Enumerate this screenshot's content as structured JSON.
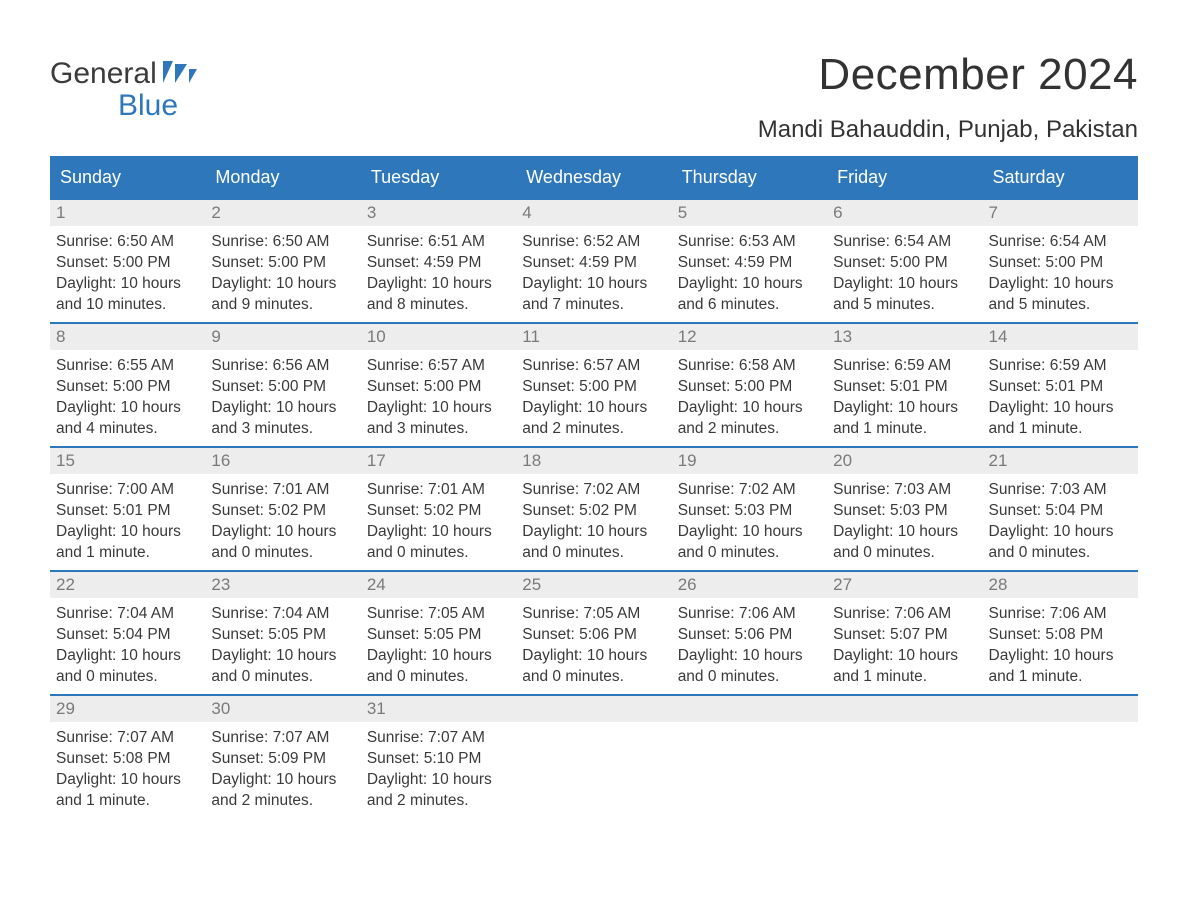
{
  "brand": {
    "word1": "General",
    "word2": "Blue",
    "accent_color": "#2f77bb"
  },
  "header": {
    "month_title": "December 2024",
    "location": "Mandi Bahauddin, Punjab, Pakistan"
  },
  "calendar": {
    "day_headers": [
      "Sunday",
      "Monday",
      "Tuesday",
      "Wednesday",
      "Thursday",
      "Friday",
      "Saturday"
    ],
    "colors": {
      "header_bg": "#2f77bb",
      "header_text": "#ffffff",
      "daynum_bg": "#ededed",
      "daynum_text": "#7a7a7a",
      "body_text": "#3a3a3a",
      "rule": "#2f77bb",
      "page_bg": "#ffffff"
    },
    "typography": {
      "month_title_fontsize": 44,
      "location_fontsize": 24,
      "header_fontsize": 18,
      "daynum_fontsize": 17,
      "body_fontsize": 15.5,
      "logo_fontsize": 30
    },
    "weeks": [
      [
        {
          "num": "1",
          "sunrise": "Sunrise: 6:50 AM",
          "sunset": "Sunset: 5:00 PM",
          "daylight1": "Daylight: 10 hours",
          "daylight2": "and 10 minutes."
        },
        {
          "num": "2",
          "sunrise": "Sunrise: 6:50 AM",
          "sunset": "Sunset: 5:00 PM",
          "daylight1": "Daylight: 10 hours",
          "daylight2": "and 9 minutes."
        },
        {
          "num": "3",
          "sunrise": "Sunrise: 6:51 AM",
          "sunset": "Sunset: 4:59 PM",
          "daylight1": "Daylight: 10 hours",
          "daylight2": "and 8 minutes."
        },
        {
          "num": "4",
          "sunrise": "Sunrise: 6:52 AM",
          "sunset": "Sunset: 4:59 PM",
          "daylight1": "Daylight: 10 hours",
          "daylight2": "and 7 minutes."
        },
        {
          "num": "5",
          "sunrise": "Sunrise: 6:53 AM",
          "sunset": "Sunset: 4:59 PM",
          "daylight1": "Daylight: 10 hours",
          "daylight2": "and 6 minutes."
        },
        {
          "num": "6",
          "sunrise": "Sunrise: 6:54 AM",
          "sunset": "Sunset: 5:00 PM",
          "daylight1": "Daylight: 10 hours",
          "daylight2": "and 5 minutes."
        },
        {
          "num": "7",
          "sunrise": "Sunrise: 6:54 AM",
          "sunset": "Sunset: 5:00 PM",
          "daylight1": "Daylight: 10 hours",
          "daylight2": "and 5 minutes."
        }
      ],
      [
        {
          "num": "8",
          "sunrise": "Sunrise: 6:55 AM",
          "sunset": "Sunset: 5:00 PM",
          "daylight1": "Daylight: 10 hours",
          "daylight2": "and 4 minutes."
        },
        {
          "num": "9",
          "sunrise": "Sunrise: 6:56 AM",
          "sunset": "Sunset: 5:00 PM",
          "daylight1": "Daylight: 10 hours",
          "daylight2": "and 3 minutes."
        },
        {
          "num": "10",
          "sunrise": "Sunrise: 6:57 AM",
          "sunset": "Sunset: 5:00 PM",
          "daylight1": "Daylight: 10 hours",
          "daylight2": "and 3 minutes."
        },
        {
          "num": "11",
          "sunrise": "Sunrise: 6:57 AM",
          "sunset": "Sunset: 5:00 PM",
          "daylight1": "Daylight: 10 hours",
          "daylight2": "and 2 minutes."
        },
        {
          "num": "12",
          "sunrise": "Sunrise: 6:58 AM",
          "sunset": "Sunset: 5:00 PM",
          "daylight1": "Daylight: 10 hours",
          "daylight2": "and 2 minutes."
        },
        {
          "num": "13",
          "sunrise": "Sunrise: 6:59 AM",
          "sunset": "Sunset: 5:01 PM",
          "daylight1": "Daylight: 10 hours",
          "daylight2": "and 1 minute."
        },
        {
          "num": "14",
          "sunrise": "Sunrise: 6:59 AM",
          "sunset": "Sunset: 5:01 PM",
          "daylight1": "Daylight: 10 hours",
          "daylight2": "and 1 minute."
        }
      ],
      [
        {
          "num": "15",
          "sunrise": "Sunrise: 7:00 AM",
          "sunset": "Sunset: 5:01 PM",
          "daylight1": "Daylight: 10 hours",
          "daylight2": "and 1 minute."
        },
        {
          "num": "16",
          "sunrise": "Sunrise: 7:01 AM",
          "sunset": "Sunset: 5:02 PM",
          "daylight1": "Daylight: 10 hours",
          "daylight2": "and 0 minutes."
        },
        {
          "num": "17",
          "sunrise": "Sunrise: 7:01 AM",
          "sunset": "Sunset: 5:02 PM",
          "daylight1": "Daylight: 10 hours",
          "daylight2": "and 0 minutes."
        },
        {
          "num": "18",
          "sunrise": "Sunrise: 7:02 AM",
          "sunset": "Sunset: 5:02 PM",
          "daylight1": "Daylight: 10 hours",
          "daylight2": "and 0 minutes."
        },
        {
          "num": "19",
          "sunrise": "Sunrise: 7:02 AM",
          "sunset": "Sunset: 5:03 PM",
          "daylight1": "Daylight: 10 hours",
          "daylight2": "and 0 minutes."
        },
        {
          "num": "20",
          "sunrise": "Sunrise: 7:03 AM",
          "sunset": "Sunset: 5:03 PM",
          "daylight1": "Daylight: 10 hours",
          "daylight2": "and 0 minutes."
        },
        {
          "num": "21",
          "sunrise": "Sunrise: 7:03 AM",
          "sunset": "Sunset: 5:04 PM",
          "daylight1": "Daylight: 10 hours",
          "daylight2": "and 0 minutes."
        }
      ],
      [
        {
          "num": "22",
          "sunrise": "Sunrise: 7:04 AM",
          "sunset": "Sunset: 5:04 PM",
          "daylight1": "Daylight: 10 hours",
          "daylight2": "and 0 minutes."
        },
        {
          "num": "23",
          "sunrise": "Sunrise: 7:04 AM",
          "sunset": "Sunset: 5:05 PM",
          "daylight1": "Daylight: 10 hours",
          "daylight2": "and 0 minutes."
        },
        {
          "num": "24",
          "sunrise": "Sunrise: 7:05 AM",
          "sunset": "Sunset: 5:05 PM",
          "daylight1": "Daylight: 10 hours",
          "daylight2": "and 0 minutes."
        },
        {
          "num": "25",
          "sunrise": "Sunrise: 7:05 AM",
          "sunset": "Sunset: 5:06 PM",
          "daylight1": "Daylight: 10 hours",
          "daylight2": "and 0 minutes."
        },
        {
          "num": "26",
          "sunrise": "Sunrise: 7:06 AM",
          "sunset": "Sunset: 5:06 PM",
          "daylight1": "Daylight: 10 hours",
          "daylight2": "and 0 minutes."
        },
        {
          "num": "27",
          "sunrise": "Sunrise: 7:06 AM",
          "sunset": "Sunset: 5:07 PM",
          "daylight1": "Daylight: 10 hours",
          "daylight2": "and 1 minute."
        },
        {
          "num": "28",
          "sunrise": "Sunrise: 7:06 AM",
          "sunset": "Sunset: 5:08 PM",
          "daylight1": "Daylight: 10 hours",
          "daylight2": "and 1 minute."
        }
      ],
      [
        {
          "num": "29",
          "sunrise": "Sunrise: 7:07 AM",
          "sunset": "Sunset: 5:08 PM",
          "daylight1": "Daylight: 10 hours",
          "daylight2": "and 1 minute."
        },
        {
          "num": "30",
          "sunrise": "Sunrise: 7:07 AM",
          "sunset": "Sunset: 5:09 PM",
          "daylight1": "Daylight: 10 hours",
          "daylight2": "and 2 minutes."
        },
        {
          "num": "31",
          "sunrise": "Sunrise: 7:07 AM",
          "sunset": "Sunset: 5:10 PM",
          "daylight1": "Daylight: 10 hours",
          "daylight2": "and 2 minutes."
        },
        null,
        null,
        null,
        null
      ]
    ]
  }
}
